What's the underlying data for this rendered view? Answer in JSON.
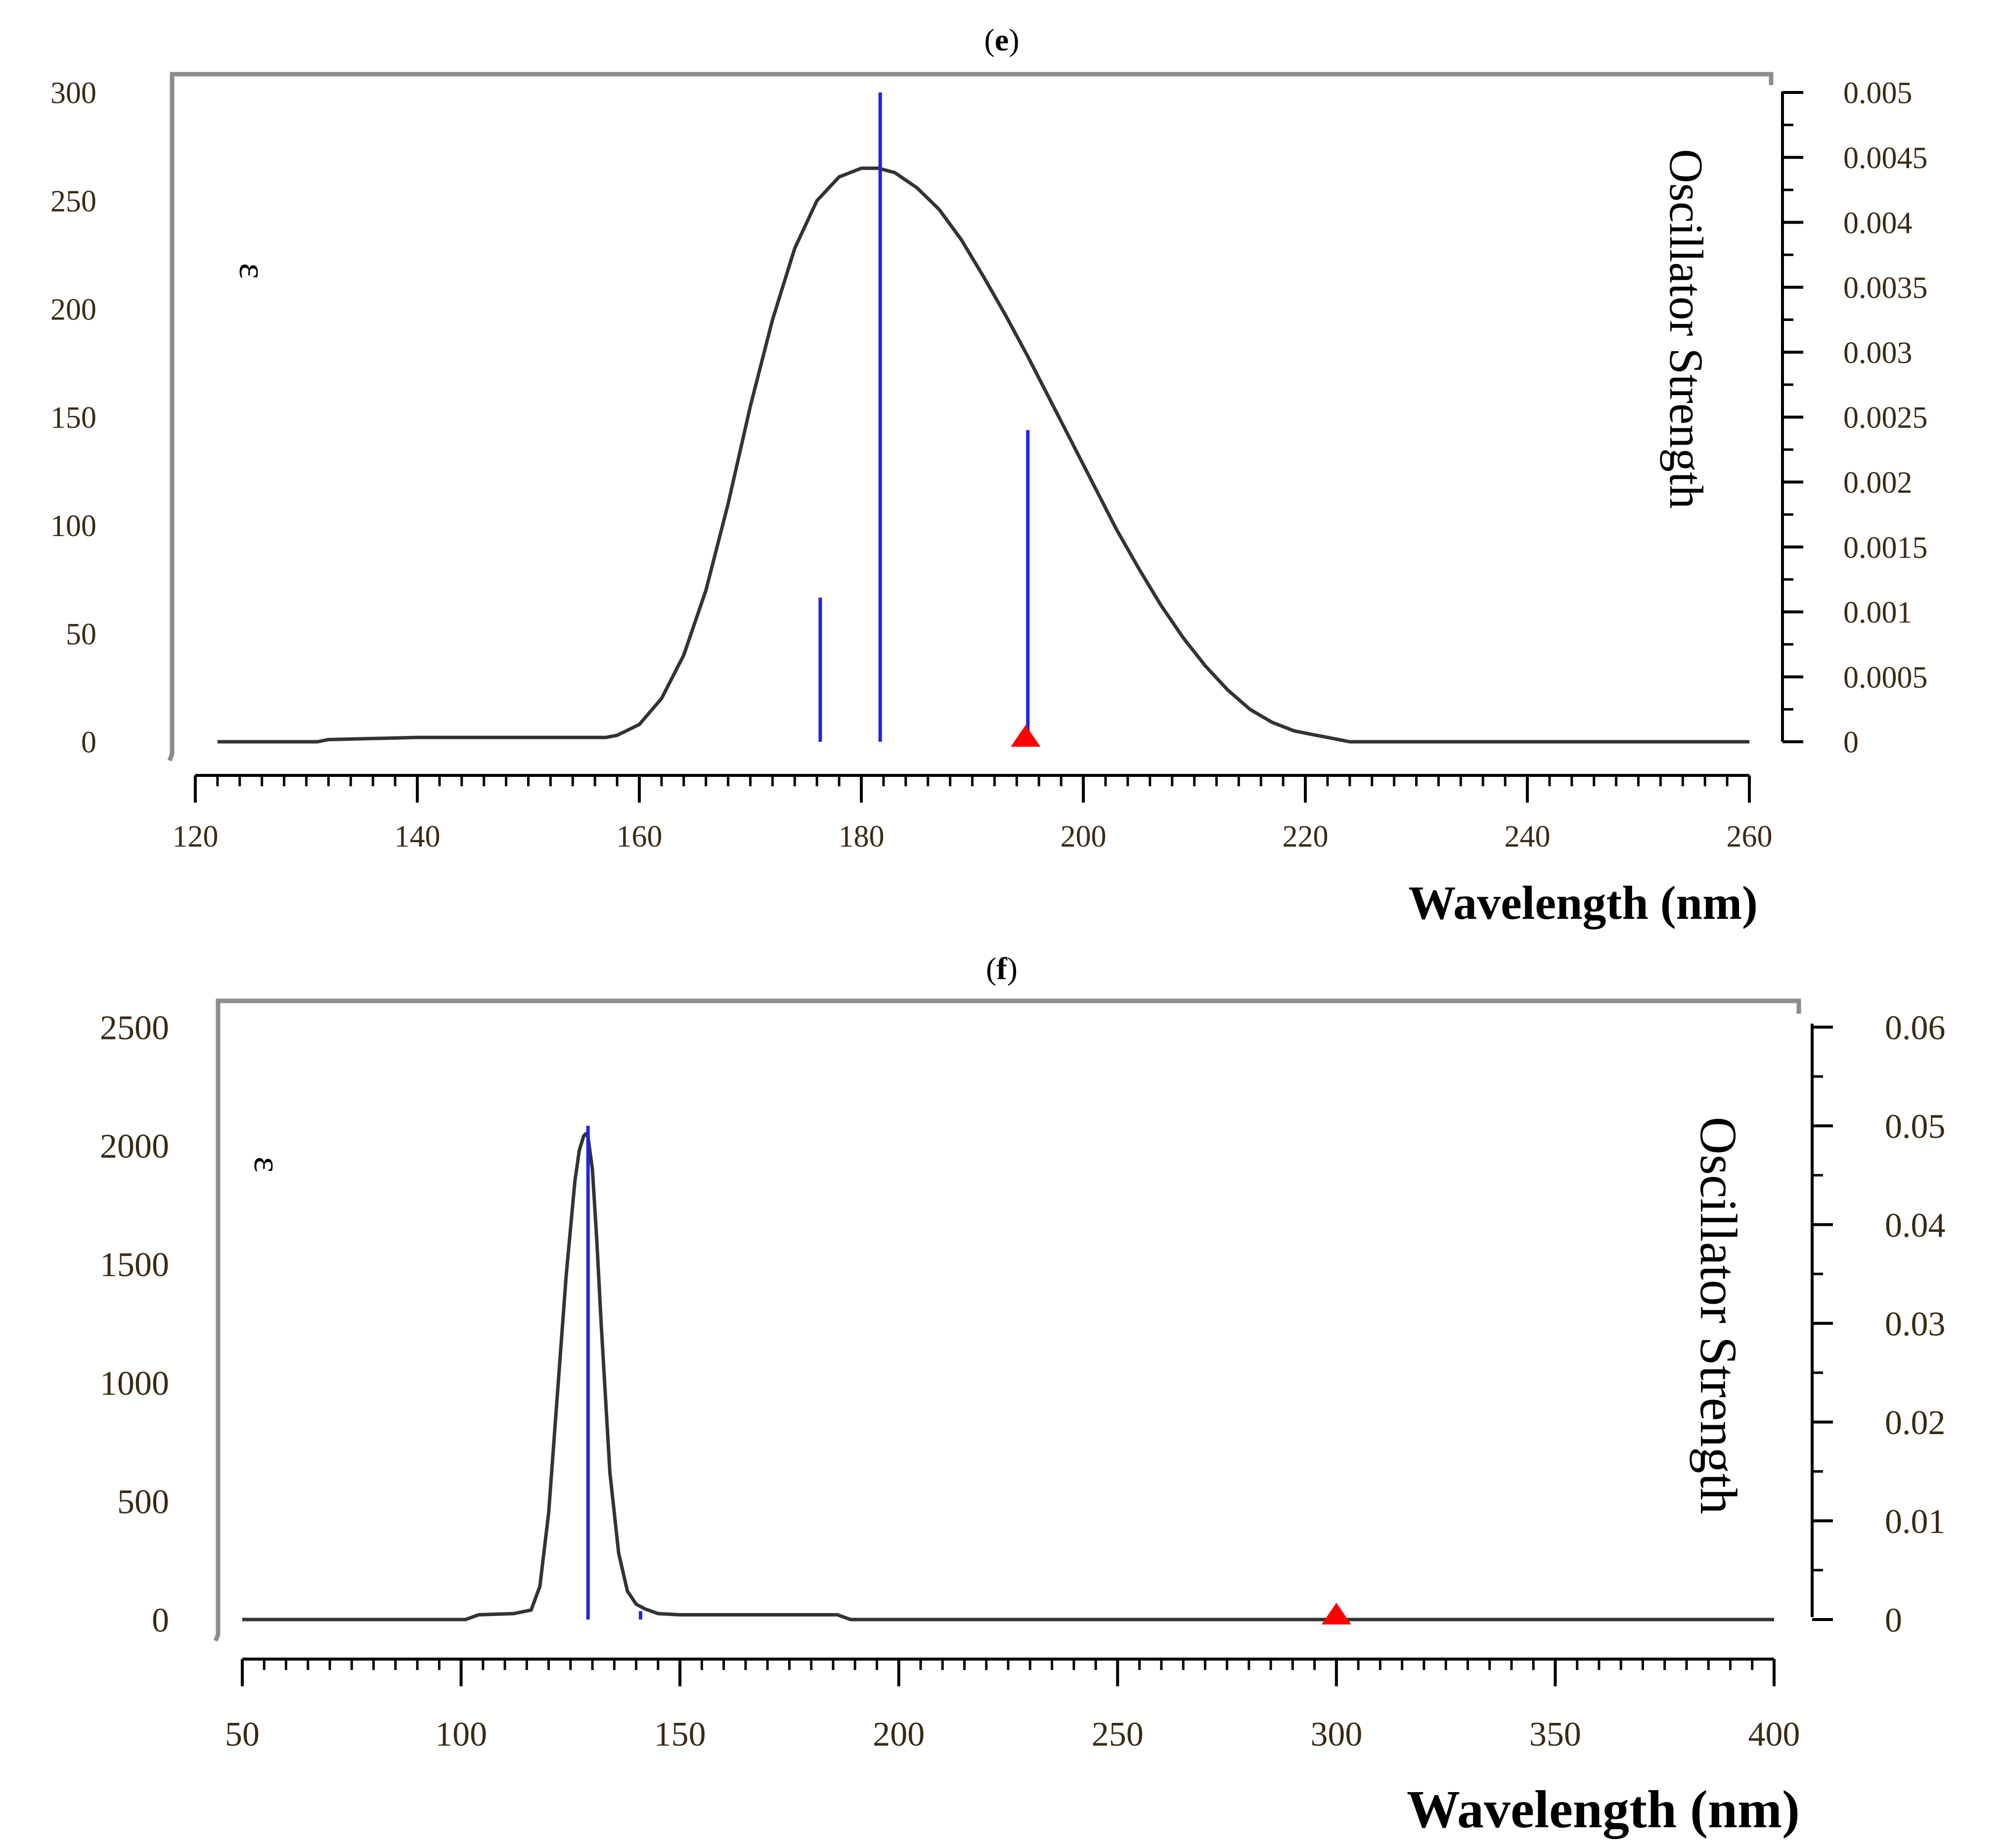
{
  "colors": {
    "frame": "#8c8c8c",
    "axis": "#000000",
    "curve": "#333333",
    "stick": "#1f24e6",
    "marker": "#ff0000",
    "tick_label": "#3a2a14"
  },
  "chart_data": [
    {
      "id": "e",
      "type": "line",
      "label": "(e)",
      "panel_letter": "e",
      "epsilon_symbol": "ε",
      "y_right_label": "Oscillator Strength",
      "x_title": "Wavelength (nm)",
      "xlim": [
        120,
        260
      ],
      "ylim_left": [
        0,
        300
      ],
      "ylim_right": [
        0,
        0.005
      ],
      "x_ticks": [
        120,
        140,
        160,
        180,
        200,
        220,
        240,
        260
      ],
      "x_tick_labels": [
        "120",
        "140",
        "160",
        "180",
        "200",
        "220",
        "240",
        "260"
      ],
      "y_left_ticks": [
        0,
        50,
        100,
        150,
        200,
        250,
        300
      ],
      "y_left_tick_labels": [
        "0",
        "50",
        "100",
        "150",
        "200",
        "250",
        "300"
      ],
      "y_right_ticks": [
        0,
        0.0005,
        0.001,
        0.0015,
        0.002,
        0.0025,
        0.003,
        0.0035,
        0.004,
        0.0045,
        0.005
      ],
      "y_right_tick_labels": [
        "0",
        "0.0005",
        "0.001",
        "0.0015",
        "0.002",
        "0.0025",
        "0.003",
        "0.0035",
        "0.004",
        "0.0045",
        "0.005"
      ],
      "curve": {
        "x": [
          122,
          131,
          132,
          140,
          150,
          157,
          158,
          160,
          162,
          164,
          166,
          168,
          170,
          172,
          174,
          176,
          178,
          180,
          181.5,
          183,
          185,
          187,
          189,
          191,
          193,
          195,
          197,
          199,
          201,
          203,
          205,
          207,
          209,
          211,
          213,
          215,
          217,
          219,
          221,
          222,
          223,
          224,
          230,
          240,
          250,
          260
        ],
        "y": [
          0,
          0,
          1,
          2,
          2,
          2,
          3,
          8,
          20,
          40,
          70,
          110,
          155,
          195,
          228,
          250,
          261,
          265,
          265,
          263,
          256,
          246,
          232,
          215,
          197,
          178,
          158,
          138,
          118,
          98,
          80,
          63,
          48,
          35,
          24,
          15,
          9,
          5,
          3,
          2,
          1,
          0,
          0,
          0,
          0,
          0
        ]
      },
      "sticks": [
        {
          "x": 176.3,
          "f": 0.00111
        },
        {
          "x": 181.7,
          "f": 0.005
        },
        {
          "x": 195.0,
          "f": 0.0024
        }
      ],
      "marker": {
        "x": 194.8,
        "f": 0
      }
    },
    {
      "id": "f",
      "type": "line",
      "label": "(f)",
      "panel_letter": "f",
      "epsilon_symbol": "ε",
      "y_right_label": "Oscillator Strength",
      "x_title": "Wavelength (nm)",
      "xlim": [
        50,
        400
      ],
      "ylim_left": [
        0,
        2500
      ],
      "ylim_right": [
        0,
        0.06
      ],
      "x_ticks": [
        50,
        100,
        150,
        200,
        250,
        300,
        350,
        400
      ],
      "x_tick_labels": [
        "50",
        "100",
        "150",
        "200",
        "250",
        "300",
        "350",
        "400"
      ],
      "y_left_ticks": [
        0,
        500,
        1000,
        1500,
        2000,
        2500
      ],
      "y_left_tick_labels": [
        "0",
        "500",
        "1000",
        "1500",
        "2000",
        "2500"
      ],
      "y_right_ticks": [
        0,
        0.01,
        0.02,
        0.03,
        0.04,
        0.05,
        0.06
      ],
      "y_right_tick_labels": [
        "0",
        "0.01",
        "0.02",
        "0.03",
        "0.04",
        "0.05",
        "0.06"
      ],
      "curve": {
        "x": [
          50,
          101,
          104,
          112,
          116,
          118,
          120,
          122,
          124,
          126,
          127,
          128,
          128.5,
          129,
          130,
          131,
          132,
          134,
          136,
          138,
          140,
          142,
          145,
          150,
          186,
          189,
          250,
          300,
          400
        ],
        "y": [
          0,
          0,
          20,
          25,
          40,
          140,
          450,
          950,
          1450,
          1850,
          1980,
          2040,
          2050,
          2035,
          1900,
          1600,
          1250,
          620,
          280,
          120,
          65,
          45,
          25,
          20,
          20,
          0,
          0,
          0,
          0
        ]
      },
      "sticks": [
        {
          "x": 129.0,
          "f": 0.05
        },
        {
          "x": 141.0,
          "f": 0.00085
        }
      ],
      "marker": {
        "x": 300.0,
        "f": 0
      }
    }
  ]
}
